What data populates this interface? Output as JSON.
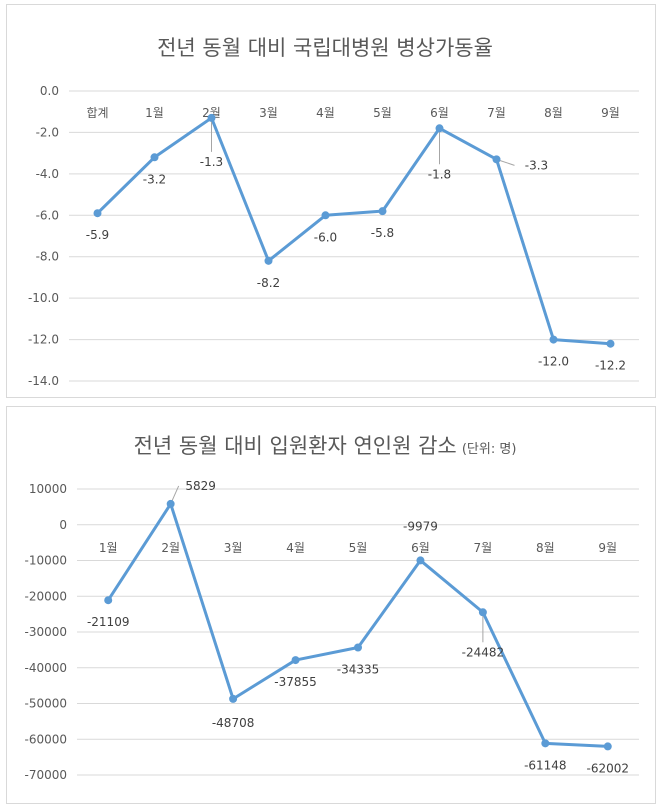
{
  "chart_data": [
    {
      "type": "line",
      "title": "전년 동월 대비 국립대병원 병상가동율",
      "title_unit": "",
      "categories": [
        "합계",
        "1월",
        "2월",
        "3월",
        "4월",
        "5월",
        "6월",
        "7월",
        "8월",
        "9월"
      ],
      "series": [
        {
          "values": [
            -5.9,
            -3.2,
            -1.3,
            -8.2,
            -6.0,
            -5.8,
            -1.8,
            -3.3,
            -12.0,
            -12.2
          ]
        }
      ],
      "data_labels": [
        "-5.9",
        "-3.2",
        "-1.3",
        "-8.2",
        "-6.0",
        "-5.8",
        "-1.8",
        "-3.3",
        "-12.0",
        "-12.2"
      ],
      "ylim": [
        -14,
        0
      ],
      "yticks": [
        "0.0",
        "-2.0",
        "-4.0",
        "-6.0",
        "-8.0",
        "-10.0",
        "-12.0",
        "-14.0"
      ],
      "grid": true,
      "legend": "none",
      "color": "#5b9bd5"
    },
    {
      "type": "line",
      "title": "전년 동월 대비 입원환자 연인원 감소",
      "title_unit": "(단위: 명)",
      "categories": [
        "1월",
        "2월",
        "3월",
        "4월",
        "5월",
        "6월",
        "7월",
        "8월",
        "9월"
      ],
      "series": [
        {
          "values": [
            -21109,
            5829,
            -48708,
            -37855,
            -34335,
            -9979,
            -24482,
            -61148,
            -62002
          ]
        }
      ],
      "data_labels": [
        "-21109",
        "5829",
        "-48708",
        "-37855",
        "-34335",
        "-9979",
        "-24482",
        "-61148",
        "-62002"
      ],
      "ylim": [
        -70000,
        10000
      ],
      "yticks": [
        "10000",
        "0",
        "-10000",
        "-20000",
        "-30000",
        "-40000",
        "-50000",
        "-60000",
        "-70000"
      ],
      "grid": true,
      "legend": "none",
      "color": "#5b9bd5"
    }
  ]
}
